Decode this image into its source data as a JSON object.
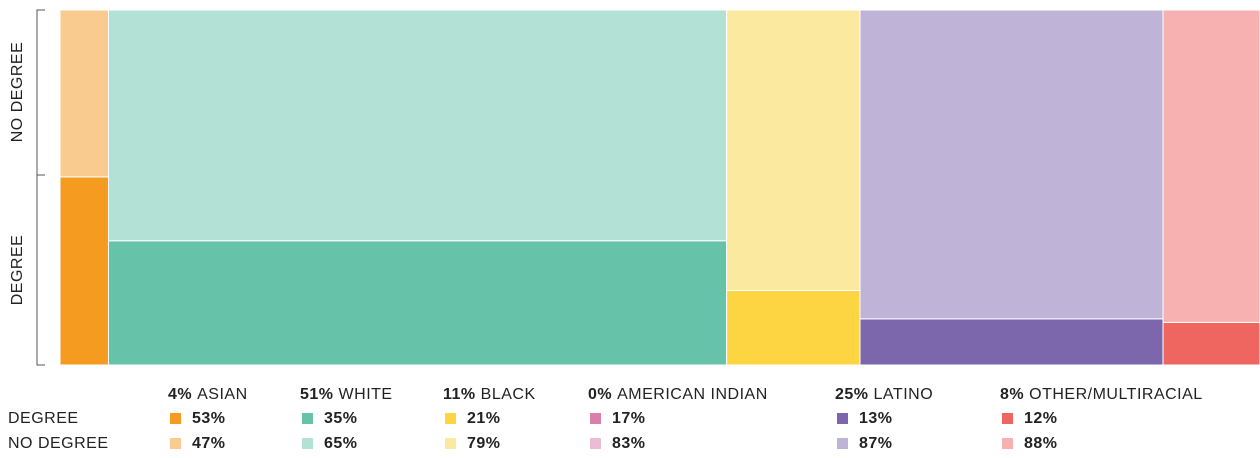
{
  "chart_data": {
    "type": "mosaic",
    "categories": [
      "ASIAN",
      "WHITE",
      "BLACK",
      "AMERICAN INDIAN",
      "LATINO",
      "OTHER/MULTIRACIAL"
    ],
    "shares": {
      "values": [
        4,
        51,
        11,
        0,
        25,
        8
      ],
      "value_labels": [
        "4%",
        "51%",
        "11%",
        "0%",
        "25%",
        "8%"
      ]
    },
    "series": [
      {
        "name": "DEGREE",
        "values": [
          53,
          35,
          21,
          17,
          13,
          12
        ],
        "value_labels": [
          "53%",
          "35%",
          "21%",
          "17%",
          "13%",
          "12%"
        ],
        "colors": [
          "#f59c20",
          "#66c3aa",
          "#fdd441",
          "#d87fac",
          "#7d67ac",
          "#ef6660"
        ]
      },
      {
        "name": "NO DEGREE",
        "values": [
          47,
          65,
          79,
          83,
          87,
          88
        ],
        "value_labels": [
          "47%",
          "65%",
          "79%",
          "83%",
          "87%",
          "88%"
        ],
        "colors": [
          "#f9cb8f",
          "#b3e1d5",
          "#fbe9a0",
          "#ecbcd6",
          "#bfb3d7",
          "#f7b1b0"
        ]
      }
    ]
  }
}
